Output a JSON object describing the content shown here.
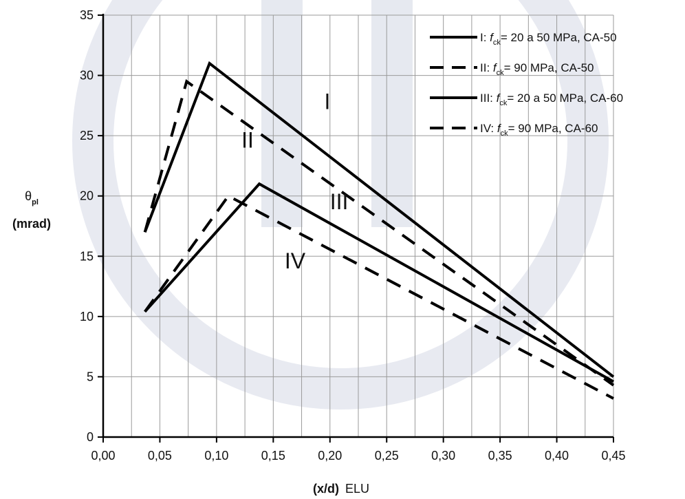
{
  "chart_data": {
    "type": "line",
    "xlabel": {
      "bold_part": "(x/d)",
      "normal_part": "ELU"
    },
    "ylabel": {
      "symbol": "θ",
      "symbol_sub": "pl",
      "unit": "(mrad)"
    },
    "xlim": [
      0.0,
      0.45
    ],
    "ylim": [
      0,
      35
    ],
    "x_ticks": [
      "0,00",
      "0,05",
      "0,10",
      "0,15",
      "0,20",
      "0,25",
      "0,30",
      "0,35",
      "0,40",
      "0,45"
    ],
    "x_tick_values": [
      0.0,
      0.05,
      0.1,
      0.15,
      0.2,
      0.25,
      0.3,
      0.35,
      0.4,
      0.45
    ],
    "y_ticks": [
      "0",
      "5",
      "10",
      "15",
      "20",
      "25",
      "30",
      "35"
    ],
    "y_tick_values": [
      0,
      5,
      10,
      15,
      20,
      25,
      30,
      35
    ],
    "grid": {
      "vertical": true,
      "horizontal": true,
      "minor_x_step": 0.025
    },
    "legend_position": "top-right",
    "series": [
      {
        "name": {
          "prefix": "I:",
          "var": "f",
          "var_sub": "ck",
          "text": "= 20  a 50 MPa, CA-50"
        },
        "style": "solid",
        "x": [
          0.0368,
          0.0938,
          0.45
        ],
        "y": [
          17.0,
          31.0,
          5.0
        ]
      },
      {
        "name": {
          "prefix": "II:",
          "var": "f",
          "var_sub": "ck",
          "text": "= 90  MPa, CA-50"
        },
        "style": "dashed",
        "x": [
          0.0368,
          0.0736,
          0.45
        ],
        "y": [
          17.0,
          29.5,
          4.3
        ]
      },
      {
        "name": {
          "prefix": "III:",
          "var": "f",
          "var_sub": "ck",
          "text": "= 20  a 50 MPa, CA-60"
        },
        "style": "solid",
        "x": [
          0.0368,
          0.1377,
          0.45
        ],
        "y": [
          10.4,
          21.0,
          4.6
        ]
      },
      {
        "name": {
          "prefix": "IV:",
          "var": "f",
          "var_sub": "ck",
          "text": "= 90  MPa, CA-60"
        },
        "style": "dashed",
        "x": [
          0.0368,
          0.1104,
          0.45
        ],
        "y": [
          10.4,
          20.0,
          3.2
        ]
      }
    ],
    "curve_labels": [
      {
        "text": "I",
        "x": 0.195,
        "y": 27.2
      },
      {
        "text": "II",
        "x": 0.122,
        "y": 24.0
      },
      {
        "text": "III",
        "x": 0.2,
        "y": 18.9
      },
      {
        "text": "IV",
        "x": 0.16,
        "y": 14.0
      }
    ]
  }
}
